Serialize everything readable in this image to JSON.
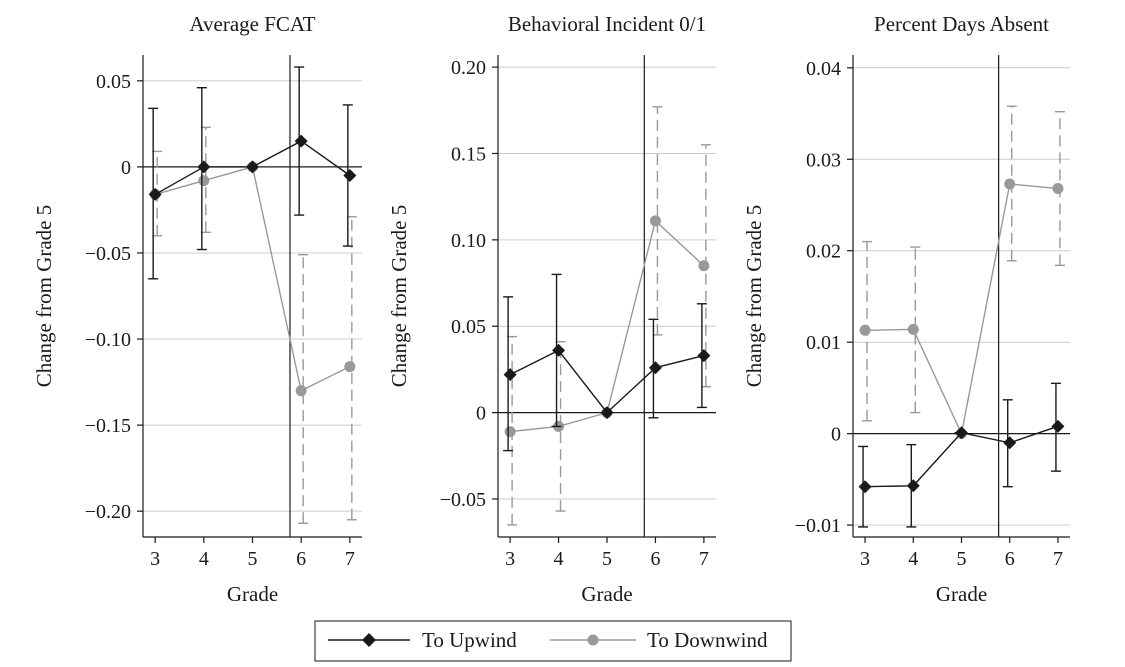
{
  "chart_data": [
    {
      "type": "line",
      "title": "Average FCAT",
      "xlabel": "Grade",
      "ylabel": "Change from Grade 5",
      "x": [
        3,
        4,
        5,
        6,
        7
      ],
      "ylim": [
        -0.215,
        0.065
      ],
      "yticks": [
        0.05,
        0,
        -0.05,
        -0.1,
        -0.15,
        -0.2
      ],
      "ytick_labels": [
        "0.05",
        "0",
        "−0.05",
        "−0.10",
        "−0.15",
        "−0.20"
      ],
      "grid": "horizontal",
      "series": [
        {
          "name": "To Upwind",
          "values": [
            -0.016,
            0.0,
            0.0,
            0.015,
            -0.005
          ],
          "ci_low": [
            -0.065,
            -0.048,
            0.0,
            -0.028,
            -0.046
          ],
          "ci_high": [
            0.034,
            0.046,
            0.0,
            0.058,
            0.036
          ]
        },
        {
          "name": "To Downwind",
          "values": [
            -0.016,
            -0.008,
            0.0,
            -0.13,
            -0.116
          ],
          "ci_low": [
            -0.04,
            -0.038,
            0.0,
            -0.207,
            -0.205
          ],
          "ci_high": [
            0.009,
            0.023,
            0.0,
            -0.051,
            -0.029
          ]
        }
      ]
    },
    {
      "type": "line",
      "title": "Behavioral Incident 0/1",
      "xlabel": "Grade",
      "ylabel": "Change from Grade 5",
      "x": [
        3,
        4,
        5,
        6,
        7
      ],
      "ylim": [
        -0.072,
        0.207
      ],
      "yticks": [
        0.2,
        0.15,
        0.1,
        0.05,
        0,
        -0.05
      ],
      "ytick_labels": [
        "0.20",
        "0.15",
        "0.10",
        "0.05",
        "0",
        "−0.05"
      ],
      "grid": "horizontal",
      "series": [
        {
          "name": "To Upwind",
          "values": [
            0.022,
            0.036,
            0.0,
            0.026,
            0.033
          ],
          "ci_low": [
            -0.022,
            -0.008,
            0.0,
            -0.003,
            0.003
          ],
          "ci_high": [
            0.067,
            0.08,
            0.0,
            0.054,
            0.063
          ]
        },
        {
          "name": "To Downwind",
          "values": [
            -0.011,
            -0.008,
            0.0,
            0.111,
            0.085
          ],
          "ci_low": [
            -0.065,
            -0.057,
            0.0,
            0.045,
            0.015
          ],
          "ci_high": [
            0.044,
            0.041,
            0.0,
            0.177,
            0.155
          ]
        }
      ]
    },
    {
      "type": "line",
      "title": "Percent Days Absent",
      "xlabel": "Grade",
      "ylabel": "Change from Grade 5",
      "x": [
        3,
        4,
        5,
        6,
        7
      ],
      "ylim": [
        -0.0113,
        0.0414
      ],
      "yticks": [
        0.04,
        0.03,
        0.02,
        0.01,
        0,
        -0.01
      ],
      "ytick_labels": [
        "0.04",
        "0.03",
        "0.02",
        "0.01",
        "0",
        "−0.01"
      ],
      "grid": "horizontal",
      "series": [
        {
          "name": "To Upwind",
          "values": [
            -0.0058,
            -0.0057,
            0.0001,
            -0.001,
            0.0008
          ],
          "ci_low": [
            -0.0102,
            -0.0102,
            0.0,
            -0.0058,
            -0.0041
          ],
          "ci_high": [
            -0.0014,
            -0.0012,
            0.0001,
            0.0037,
            0.0055
          ]
        },
        {
          "name": "To Downwind",
          "values": [
            0.0113,
            0.0114,
            0.0,
            0.0273,
            0.0268
          ],
          "ci_low": [
            0.0014,
            0.0023,
            0.0,
            0.0189,
            0.0184
          ],
          "ci_high": [
            0.021,
            0.0204,
            0.0,
            0.0358,
            0.0352
          ]
        }
      ]
    }
  ],
  "legend": {
    "placement": "bottom-center",
    "items": [
      {
        "label": "To Upwind",
        "color": "#1a1a1a",
        "marker": "diamond"
      },
      {
        "label": "To Downwind",
        "color": "#999999",
        "marker": "circle"
      }
    ]
  },
  "colors": {
    "upwind": "#1a1a1a",
    "downwind": "#999999",
    "grid": "#cccccc",
    "axis": "#1a1a1a"
  },
  "reference_line": {
    "between_grades": [
      5,
      6
    ]
  }
}
